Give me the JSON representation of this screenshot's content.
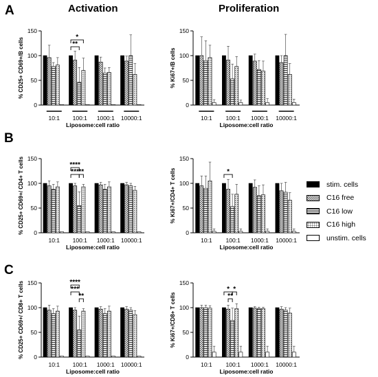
{
  "figure": {
    "column_titles": [
      "Activation",
      "Proliferation"
    ],
    "row_letters": [
      "A",
      "B",
      "C"
    ],
    "legend": [
      {
        "label": "stim. cells",
        "pattern": "solid"
      },
      {
        "label": "C16 free",
        "pattern": "check"
      },
      {
        "label": "C16 low",
        "pattern": "hstripe"
      },
      {
        "label": "C16 high",
        "pattern": "dots"
      },
      {
        "label": "unstim. cells",
        "pattern": "open"
      }
    ],
    "colors": {
      "bar_edge": "#000000",
      "solid": "#000000",
      "open": "#ffffff"
    }
  },
  "chart_data": [
    {
      "type": "bar",
      "panel": "A-left",
      "ylabel": "% CD25+ CD69+/B cells",
      "xlabel": "Liposome:cell ratio",
      "categories": [
        "10:1",
        "100:1",
        "1000:1",
        "10000:1"
      ],
      "ylim": [
        0,
        150
      ],
      "yticks": [
        0,
        50,
        100,
        150
      ],
      "show_group_underline": true,
      "series": [
        {
          "name": "stim. cells",
          "values": [
            100,
            100,
            100,
            100
          ],
          "errors": [
            0,
            0,
            0,
            0
          ]
        },
        {
          "name": "C16 free",
          "values": [
            96,
            91,
            87,
            89
          ],
          "errors": [
            25,
            18,
            10,
            10
          ]
        },
        {
          "name": "C16 low",
          "values": [
            78,
            46,
            65,
            100
          ],
          "errors": [
            8,
            30,
            10,
            42
          ]
        },
        {
          "name": "C16 high",
          "values": [
            81,
            70,
            66,
            62
          ],
          "errors": [
            15,
            25,
            10,
            22
          ]
        },
        {
          "name": "unstim. cells",
          "values": [
            1,
            1,
            1,
            1
          ],
          "errors": [
            0,
            0,
            0,
            0
          ]
        }
      ],
      "significance": [
        {
          "label": "**",
          "group": 1,
          "from": 0,
          "to": 2,
          "level": 0
        },
        {
          "label": "*",
          "group": 1,
          "from": 0,
          "to": 3,
          "level": 1
        }
      ]
    },
    {
      "type": "bar",
      "panel": "A-right",
      "ylabel": "% Ki67+/B cells",
      "xlabel": "Liposome:cell ratio",
      "categories": [
        "10:1",
        "100:1",
        "1000:1",
        "10000:1"
      ],
      "ylim": [
        0,
        150
      ],
      "yticks": [
        0,
        50,
        100,
        150
      ],
      "show_group_underline": true,
      "series": [
        {
          "name": "stim. cells",
          "values": [
            100,
            100,
            100,
            100
          ],
          "errors": [
            0,
            0,
            0,
            0
          ]
        },
        {
          "name": "C16 free",
          "values": [
            100,
            91,
            89,
            86
          ],
          "errors": [
            38,
            28,
            14,
            14
          ]
        },
        {
          "name": "C16 low",
          "values": [
            90,
            53,
            72,
            100
          ],
          "errors": [
            40,
            30,
            18,
            43
          ]
        },
        {
          "name": "C16 high",
          "values": [
            96,
            78,
            69,
            62
          ],
          "errors": [
            25,
            20,
            20,
            22
          ]
        },
        {
          "name": "unstim. cells",
          "values": [
            5,
            5,
            5,
            5
          ],
          "errors": [
            6,
            5,
            8,
            7
          ]
        }
      ],
      "significance": []
    },
    {
      "type": "bar",
      "panel": "B-left",
      "ylabel": "% CD25+ CD69+/ CD4+ T cells",
      "xlabel": "Liposome:cell ratio",
      "categories": [
        "10:1",
        "100:1",
        "1000:1",
        "10000:1"
      ],
      "ylim": [
        0,
        150
      ],
      "yticks": [
        0,
        50,
        100,
        150
      ],
      "show_group_underline": false,
      "series": [
        {
          "name": "stim. cells",
          "values": [
            100,
            100,
            100,
            100
          ],
          "errors": [
            0,
            0,
            0,
            0
          ]
        },
        {
          "name": "C16 free",
          "values": [
            95,
            95,
            97,
            97
          ],
          "errors": [
            10,
            5,
            5,
            5
          ]
        },
        {
          "name": "C16 low",
          "values": [
            88,
            55,
            88,
            95
          ],
          "errors": [
            10,
            28,
            10,
            5
          ]
        },
        {
          "name": "C16 high",
          "values": [
            93,
            93,
            93,
            86
          ],
          "errors": [
            10,
            5,
            10,
            8
          ]
        },
        {
          "name": "unstim. cells",
          "values": [
            2,
            2,
            2,
            2
          ],
          "errors": [
            0,
            0,
            0,
            0
          ]
        }
      ],
      "significance": [
        {
          "label": "****",
          "group": 1,
          "from": 0,
          "to": 2,
          "level": 1
        },
        {
          "label": "**",
          "group": 1,
          "from": 2,
          "to": 3,
          "level": 0
        },
        {
          "label": "***",
          "group": 1,
          "from": 0,
          "to": 2,
          "level": 0
        }
      ]
    },
    {
      "type": "bar",
      "panel": "B-right",
      "ylabel": "% Ki67+/CD4+ T cells",
      "xlabel": "Liposome:cell ratio",
      "categories": [
        "10:1",
        "100:1",
        "1000:1",
        "10000:1"
      ],
      "ylim": [
        0,
        150
      ],
      "yticks": [
        0,
        50,
        100,
        150
      ],
      "show_group_underline": false,
      "series": [
        {
          "name": "stim. cells",
          "values": [
            100,
            100,
            100,
            100
          ],
          "errors": [
            0,
            0,
            0,
            0
          ]
        },
        {
          "name": "C16 free",
          "values": [
            95,
            88,
            92,
            85
          ],
          "errors": [
            20,
            20,
            15,
            15
          ]
        },
        {
          "name": "C16 low",
          "values": [
            90,
            53,
            75,
            82
          ],
          "errors": [
            25,
            25,
            20,
            20
          ]
        },
        {
          "name": "C16 high",
          "values": [
            105,
            78,
            77,
            66
          ],
          "errors": [
            38,
            20,
            20,
            15
          ]
        },
        {
          "name": "unstim. cells",
          "values": [
            3,
            3,
            3,
            3
          ],
          "errors": [
            5,
            5,
            5,
            5
          ]
        }
      ],
      "significance": [
        {
          "label": "*",
          "group": 1,
          "from": 0,
          "to": 2,
          "level": 0
        }
      ]
    },
    {
      "type": "bar",
      "panel": "C-left",
      "ylabel": "% CD25+ CD69+/ CD8+ T cells",
      "xlabel": "Liposome:cell ratio",
      "categories": [
        "10:1",
        "100:1",
        "1000:1",
        "10000:1"
      ],
      "ylim": [
        0,
        150
      ],
      "yticks": [
        0,
        50,
        100,
        150
      ],
      "show_group_underline": false,
      "series": [
        {
          "name": "stim. cells",
          "values": [
            100,
            100,
            100,
            100
          ],
          "errors": [
            0,
            0,
            0,
            0
          ]
        },
        {
          "name": "C16 free",
          "values": [
            95,
            95,
            97,
            97
          ],
          "errors": [
            10,
            5,
            5,
            5
          ]
        },
        {
          "name": "C16 low",
          "values": [
            88,
            55,
            88,
            95
          ],
          "errors": [
            10,
            28,
            10,
            5
          ]
        },
        {
          "name": "C16 high",
          "values": [
            93,
            93,
            93,
            86
          ],
          "errors": [
            10,
            5,
            10,
            8
          ]
        },
        {
          "name": "unstim. cells",
          "values": [
            2,
            2,
            2,
            2
          ],
          "errors": [
            0,
            0,
            0,
            0
          ]
        }
      ],
      "significance": [
        {
          "label": "****",
          "group": 1,
          "from": 0,
          "to": 2,
          "level": 2
        },
        {
          "label": "***",
          "group": 1,
          "from": 0,
          "to": 2,
          "level": 1
        },
        {
          "label": "**",
          "group": 1,
          "from": 2,
          "to": 3,
          "level": 0
        }
      ]
    },
    {
      "type": "bar",
      "panel": "C-right",
      "ylabel": "% Ki67+/CD8+ T cells",
      "xlabel": "Liposome:cell ratio",
      "categories": [
        "10:1",
        "100:1",
        "1000:1",
        "10000:1"
      ],
      "ylim": [
        0,
        150
      ],
      "yticks": [
        0,
        50,
        100,
        150
      ],
      "show_group_underline": false,
      "series": [
        {
          "name": "stim. cells",
          "values": [
            100,
            100,
            100,
            100
          ],
          "errors": [
            0,
            0,
            0,
            0
          ]
        },
        {
          "name": "C16 free",
          "values": [
            100,
            97,
            99,
            97
          ],
          "errors": [
            5,
            8,
            3,
            5
          ]
        },
        {
          "name": "C16 low",
          "values": [
            100,
            74,
            98,
            95
          ],
          "errors": [
            5,
            25,
            3,
            5
          ]
        },
        {
          "name": "C16 high",
          "values": [
            99,
            98,
            98,
            89
          ],
          "errors": [
            5,
            10,
            3,
            10
          ]
        },
        {
          "name": "unstim. cells",
          "values": [
            10,
            10,
            10,
            10
          ],
          "errors": [
            12,
            12,
            12,
            12
          ]
        }
      ],
      "significance": [
        {
          "label": "*",
          "group": 1,
          "from": 0,
          "to": 2,
          "level": 1
        },
        {
          "label": "**",
          "group": 1,
          "from": 1,
          "to": 2,
          "level": 0
        },
        {
          "label": "*",
          "group": 1,
          "from": 2,
          "to": 3,
          "level": 1
        }
      ]
    }
  ]
}
